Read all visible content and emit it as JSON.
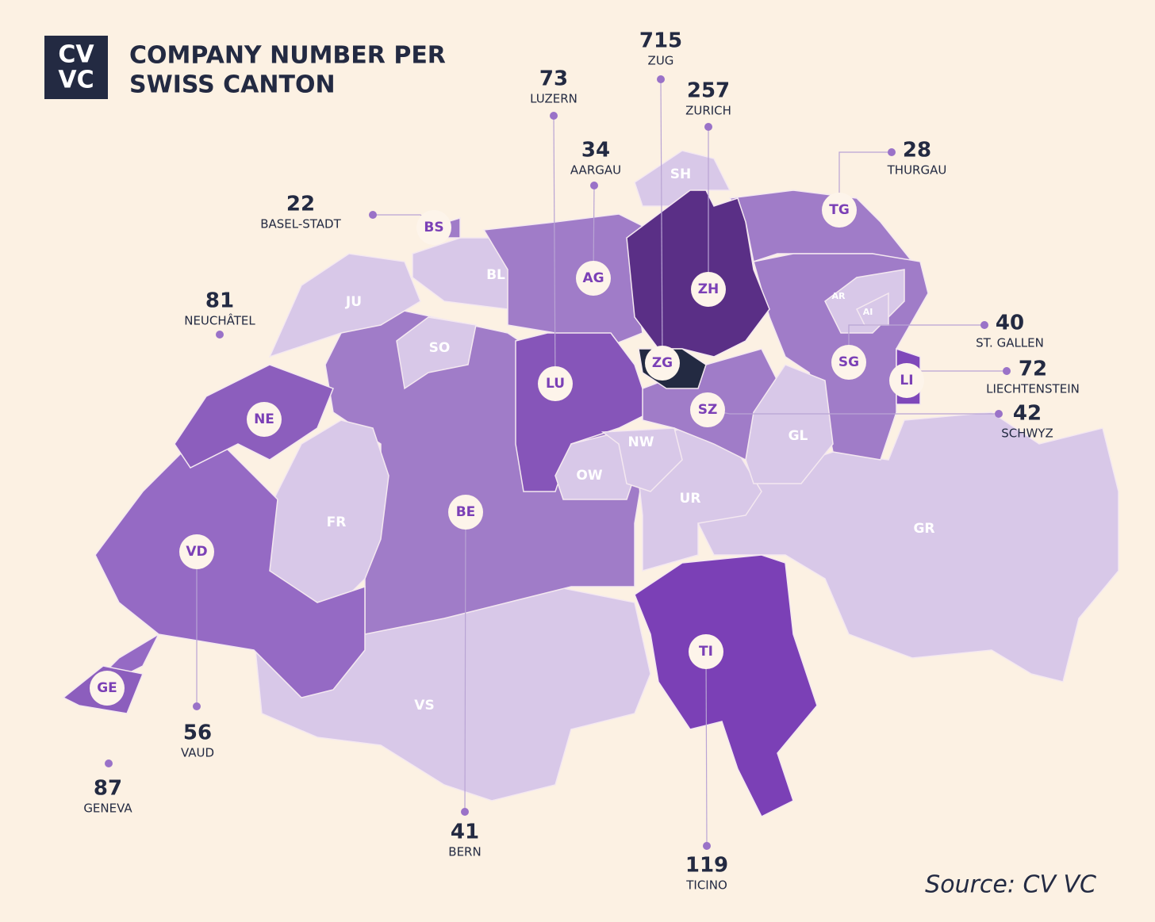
{
  "logo": [
    "CV",
    "VC"
  ],
  "title": [
    "COMPANY NUMBER PER",
    "SWISS CANTON"
  ],
  "cantons": [
    {
      "code": "VS",
      "color": "#d8c8e8"
    },
    {
      "code": "GR",
      "color": "#d8c8e8"
    },
    {
      "code": "TI",
      "color": "#7b40b6"
    },
    {
      "code": "BE",
      "color": "#a07cc8"
    },
    {
      "code": "UR",
      "color": "#d8c8e8"
    },
    {
      "code": "FR",
      "color": "#d8c8e8"
    },
    {
      "code": "VD",
      "color": "#956ac4"
    },
    {
      "code": "NE",
      "color": "#8c5ebd"
    },
    {
      "code": "GE",
      "color": "#8c5ebd"
    },
    {
      "code": "JU",
      "color": "#d8c8e8"
    },
    {
      "code": "SO",
      "color": "#d8c8e8"
    },
    {
      "code": "BL",
      "color": "#d8c8e8"
    },
    {
      "code": "BS",
      "color": "#a07cc8"
    },
    {
      "code": "AG",
      "color": "#a07cc8"
    },
    {
      "code": "SH",
      "color": "#d8c8e8"
    },
    {
      "code": "TG",
      "color": "#a07cc8"
    },
    {
      "code": "SG",
      "color": "#a07cc8"
    },
    {
      "code": "AR",
      "color": "#d8c8e8"
    },
    {
      "code": "AI",
      "color": "#d8c8e8"
    },
    {
      "code": "LI",
      "color": "#7f48ba"
    },
    {
      "code": "ZH",
      "color": "#5a2f86"
    },
    {
      "code": "LU",
      "color": "#8655b9"
    },
    {
      "code": "SZ",
      "color": "#a07cc8"
    },
    {
      "code": "ZG",
      "color": "#232a42"
    },
    {
      "code": "GL",
      "color": "#d8c8e8"
    },
    {
      "code": "OW",
      "color": "#d8c8e8"
    },
    {
      "code": "NW",
      "color": "#d8c8e8"
    }
  ],
  "callouts": [
    {
      "value": 715,
      "name": "ZUG"
    },
    {
      "value": 73,
      "name": "LUZERN"
    },
    {
      "value": 257,
      "name": "ZURICH"
    },
    {
      "value": 34,
      "name": "AARGAU"
    },
    {
      "value": 28,
      "name": "THURGAU"
    },
    {
      "value": 22,
      "name": "BASEL-STADT"
    },
    {
      "value": 81,
      "name": "NEUCHÂTEL"
    },
    {
      "value": 40,
      "name": "ST. GALLEN"
    },
    {
      "value": 72,
      "name": "LIECHTENSTEIN"
    },
    {
      "value": 42,
      "name": "SCHWYZ"
    },
    {
      "value": 56,
      "name": "VAUD"
    },
    {
      "value": 87,
      "name": "GENEVA"
    },
    {
      "value": 41,
      "name": "BERN"
    },
    {
      "value": 119,
      "name": "TICINO"
    }
  ],
  "source": "Source: CV VC"
}
